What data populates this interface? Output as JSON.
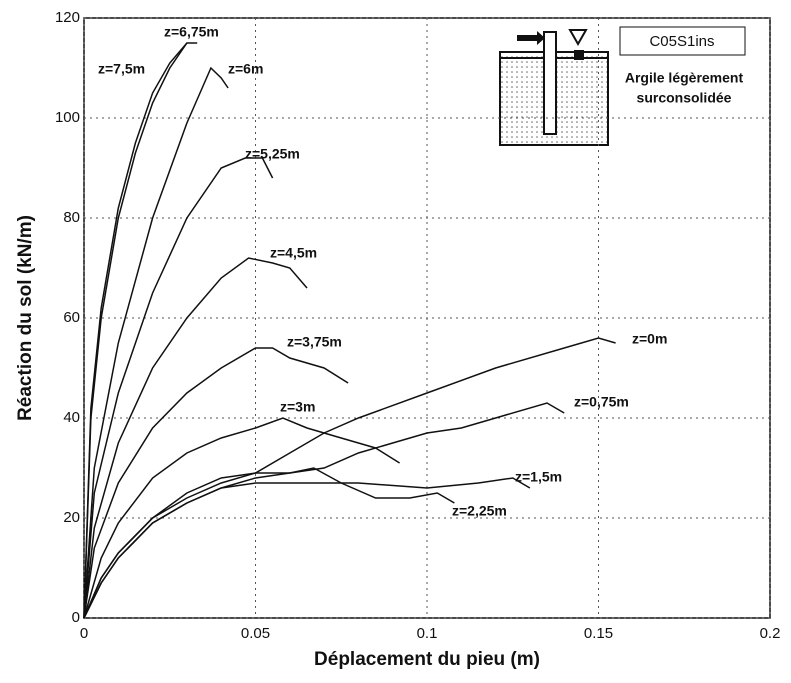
{
  "chart_data": {
    "type": "line",
    "xlabel": "Déplacement du pieu (m)",
    "ylabel": "Réaction du sol (kN/m)",
    "annotations": {
      "code": "C05S1ins",
      "soil_line1": "Argile légèrement",
      "soil_line2": "surconsolidée"
    },
    "xlim": [
      0,
      0.2
    ],
    "xticks": [
      0,
      0.05,
      0.1,
      0.15,
      0.2
    ],
    "ylim": [
      0,
      120
    ],
    "yticks": [
      0,
      20,
      40,
      60,
      80,
      100,
      120
    ],
    "grid": true,
    "series": [
      {
        "name": "z=0m",
        "color": "#111111",
        "x": [
          0,
          0.005,
          0.01,
          0.02,
          0.03,
          0.04,
          0.05,
          0.06,
          0.07,
          0.08,
          0.1,
          0.12,
          0.14,
          0.15,
          0.155
        ],
        "values": [
          0,
          8,
          13,
          20,
          24,
          27,
          29,
          33,
          37,
          40,
          45,
          50,
          54,
          56,
          55
        ]
      },
      {
        "name": "z=0,75m",
        "color": "#111111",
        "x": [
          0,
          0.005,
          0.01,
          0.02,
          0.03,
          0.04,
          0.05,
          0.06,
          0.07,
          0.08,
          0.09,
          0.1,
          0.11,
          0.12,
          0.135,
          0.14
        ],
        "values": [
          0,
          7,
          12,
          19,
          23,
          26,
          28,
          29,
          30,
          33,
          35,
          37,
          38,
          40,
          43,
          41
        ]
      },
      {
        "name": "z=1,5m",
        "color": "#111111",
        "x": [
          0,
          0.005,
          0.01,
          0.02,
          0.03,
          0.04,
          0.05,
          0.065,
          0.08,
          0.1,
          0.115,
          0.125,
          0.13
        ],
        "values": [
          0,
          7,
          12,
          19,
          23,
          26,
          27,
          27,
          27,
          26,
          27,
          28,
          26
        ]
      },
      {
        "name": "z=2,25m",
        "color": "#111111",
        "x": [
          0,
          0.005,
          0.01,
          0.02,
          0.03,
          0.04,
          0.05,
          0.06,
          0.067,
          0.075,
          0.085,
          0.095,
          0.103,
          0.108
        ],
        "values": [
          0,
          8,
          13,
          20,
          25,
          28,
          29,
          29,
          30,
          27,
          24,
          24,
          25,
          23
        ]
      },
      {
        "name": "z=3m",
        "color": "#111111",
        "x": [
          0,
          0.005,
          0.01,
          0.02,
          0.03,
          0.04,
          0.05,
          0.058,
          0.065,
          0.075,
          0.085,
          0.092
        ],
        "values": [
          0,
          12,
          19,
          28,
          33,
          36,
          38,
          40,
          38,
          36,
          34,
          31
        ]
      },
      {
        "name": "z=3,75m",
        "color": "#111111",
        "x": [
          0,
          0.003,
          0.01,
          0.02,
          0.03,
          0.04,
          0.05,
          0.055,
          0.06,
          0.07,
          0.077
        ],
        "values": [
          0,
          14,
          27,
          38,
          45,
          50,
          54,
          54,
          52,
          50,
          47
        ]
      },
      {
        "name": "z=4,5m",
        "color": "#111111",
        "x": [
          0,
          0.003,
          0.01,
          0.02,
          0.03,
          0.04,
          0.048,
          0.055,
          0.06,
          0.065
        ],
        "values": [
          0,
          18,
          35,
          50,
          60,
          68,
          72,
          71,
          70,
          66
        ]
      },
      {
        "name": "z=5,25m",
        "color": "#111111",
        "x": [
          0,
          0.003,
          0.01,
          0.02,
          0.03,
          0.04,
          0.047,
          0.052,
          0.055
        ],
        "values": [
          0,
          25,
          45,
          65,
          80,
          90,
          92,
          92,
          88
        ]
      },
      {
        "name": "z=6m",
        "color": "#111111",
        "x": [
          0,
          0.003,
          0.01,
          0.02,
          0.03,
          0.037,
          0.04,
          0.042
        ],
        "values": [
          0,
          30,
          55,
          80,
          99,
          110,
          108,
          106
        ]
      },
      {
        "name": "z=6,75m",
        "color": "#111111",
        "x": [
          0,
          0.002,
          0.005,
          0.01,
          0.015,
          0.02,
          0.025,
          0.03,
          0.033
        ],
        "values": [
          0,
          42,
          62,
          82,
          95,
          105,
          111,
          115,
          115
        ]
      },
      {
        "name": "z=7,5m",
        "color": "#111111",
        "x": [
          0,
          0.002,
          0.005,
          0.01,
          0.015,
          0.02,
          0.025,
          0.03
        ],
        "values": [
          0,
          40,
          60,
          80,
          93,
          103,
          110,
          115
        ]
      }
    ]
  }
}
